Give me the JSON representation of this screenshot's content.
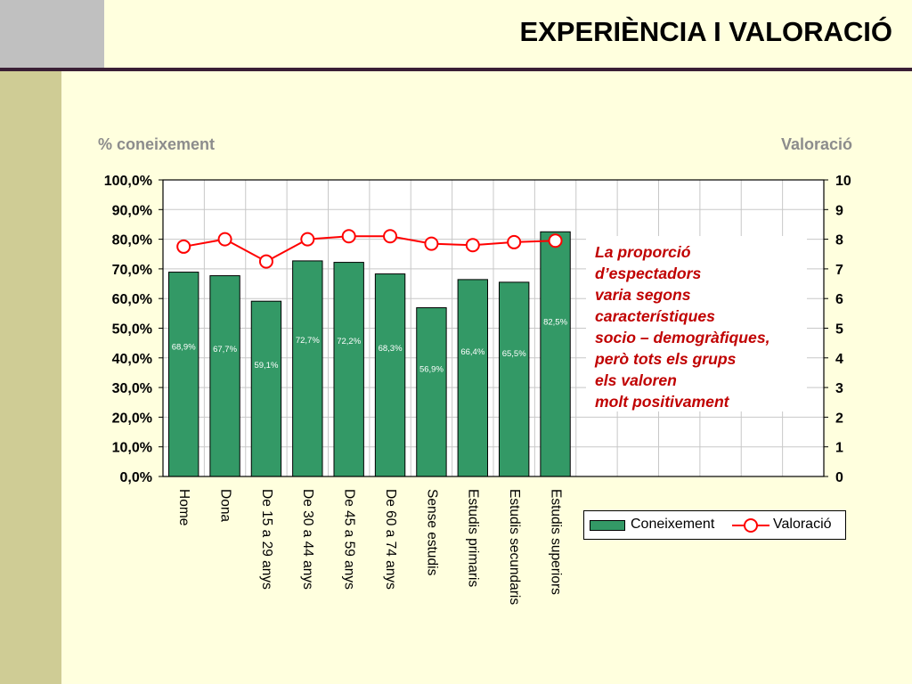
{
  "page": {
    "title": "EXPERIÈNCIA I VALORACIÓ",
    "left_axis_title": "% coneixement",
    "right_axis_title": "Valoració"
  },
  "colors": {
    "bar": "#339966",
    "line": "#ff0000",
    "annotation_text": "#c00000",
    "axis_title": "#8c8c8c"
  },
  "annotation": {
    "lines": [
      "La proporció",
      "d’espectadors",
      "varia segons",
      "característiques",
      "socio – demogràfiques,",
      "però tots els grups",
      "els valoren",
      "molt positivament"
    ]
  },
  "chart_data": {
    "type": "bar",
    "categories": [
      "Home",
      "Dona",
      "De 15 a 29 anys",
      "De 30 a 44 anys",
      "De 45 a 59 anys",
      "De 60 a 74 anys",
      "Sense estudis",
      "Estudis primaris",
      "Estudis secundaris",
      "Estudis superiors"
    ],
    "empty_category_slots": 6,
    "series": [
      {
        "name": "Coneixement",
        "kind": "bar",
        "axis": "left",
        "values": [
          68.9,
          67.7,
          59.1,
          72.7,
          72.2,
          68.3,
          56.9,
          66.4,
          65.5,
          82.5
        ],
        "labels": [
          "68,9%",
          "67,7%",
          "59,1%",
          "72,7%",
          "72,2%",
          "68,3%",
          "56,9%",
          "66,4%",
          "65,5%",
          "82,5%"
        ]
      },
      {
        "name": "Valoració",
        "kind": "line",
        "axis": "right",
        "values": [
          7.75,
          8.0,
          7.25,
          8.0,
          8.1,
          8.1,
          7.85,
          7.8,
          7.9,
          7.95
        ]
      }
    ],
    "y_left": {
      "min": 0,
      "max": 100,
      "ticks": [
        "0,0%",
        "10,0%",
        "20,0%",
        "30,0%",
        "40,0%",
        "50,0%",
        "60,0%",
        "70,0%",
        "80,0%",
        "90,0%",
        "100,0%"
      ]
    },
    "y_right": {
      "min": 0,
      "max": 10,
      "ticks": [
        "0",
        "1",
        "2",
        "3",
        "4",
        "5",
        "6",
        "7",
        "8",
        "9",
        "10"
      ]
    },
    "grid": true,
    "legend": {
      "position": "bottom-right",
      "items": [
        "Coneixement",
        "Valoració"
      ]
    }
  }
}
